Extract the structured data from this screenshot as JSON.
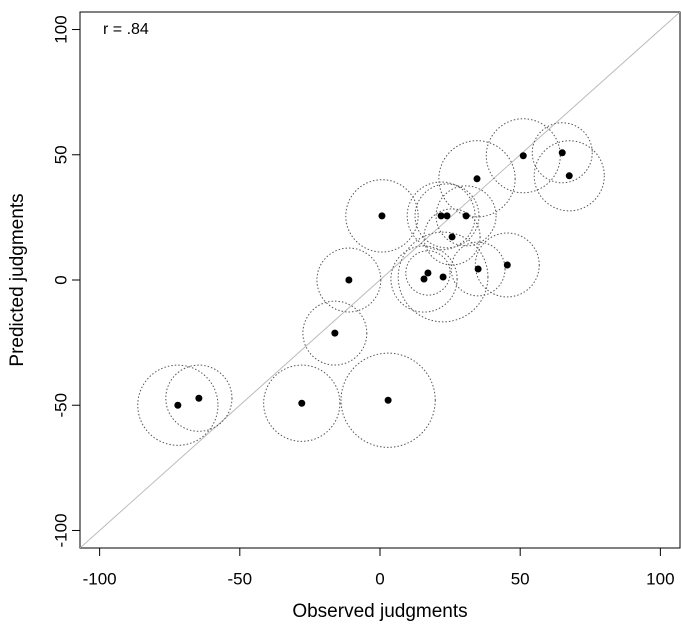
{
  "chart_data": {
    "type": "scatter",
    "annotation": "r = .84",
    "xlabel": "Observed judgments",
    "ylabel": "Predicted judgments",
    "x": [
      -72.1,
      -64.6,
      -27.9,
      2.9,
      -16.1,
      -11.1,
      0.7,
      15.7,
      17.1,
      22.5,
      21.8,
      23.9,
      25.7,
      30.7,
      34.6,
      35,
      45.4,
      51.1,
      65,
      67.5
    ],
    "values": [
      -50,
      -47.2,
      -49.2,
      -48,
      -21.2,
      0,
      25.6,
      0.4,
      2.8,
      1.2,
      25.6,
      25.6,
      17.2,
      25.6,
      40.4,
      4.4,
      6,
      49.6,
      50.8,
      41.6
    ],
    "sizes": [
      14.3,
      11.8,
      13.6,
      16.8,
      11.4,
      11.4,
      12.9,
      11.8,
      7.9,
      16,
      12.1,
      11.4,
      10,
      10.7,
      13.6,
      9.6,
      11.4,
      13.2,
      10.7,
      12.5
    ],
    "color": "#000000",
    "circle_color": "#555555",
    "reference_line_color": "#bbbbbb",
    "xlim": [
      -107,
      107
    ],
    "ylim": [
      -107,
      107
    ],
    "xticks": [
      -100,
      -50,
      0,
      50,
      100
    ],
    "yticks": [
      -100,
      -50,
      0,
      50,
      100
    ]
  }
}
